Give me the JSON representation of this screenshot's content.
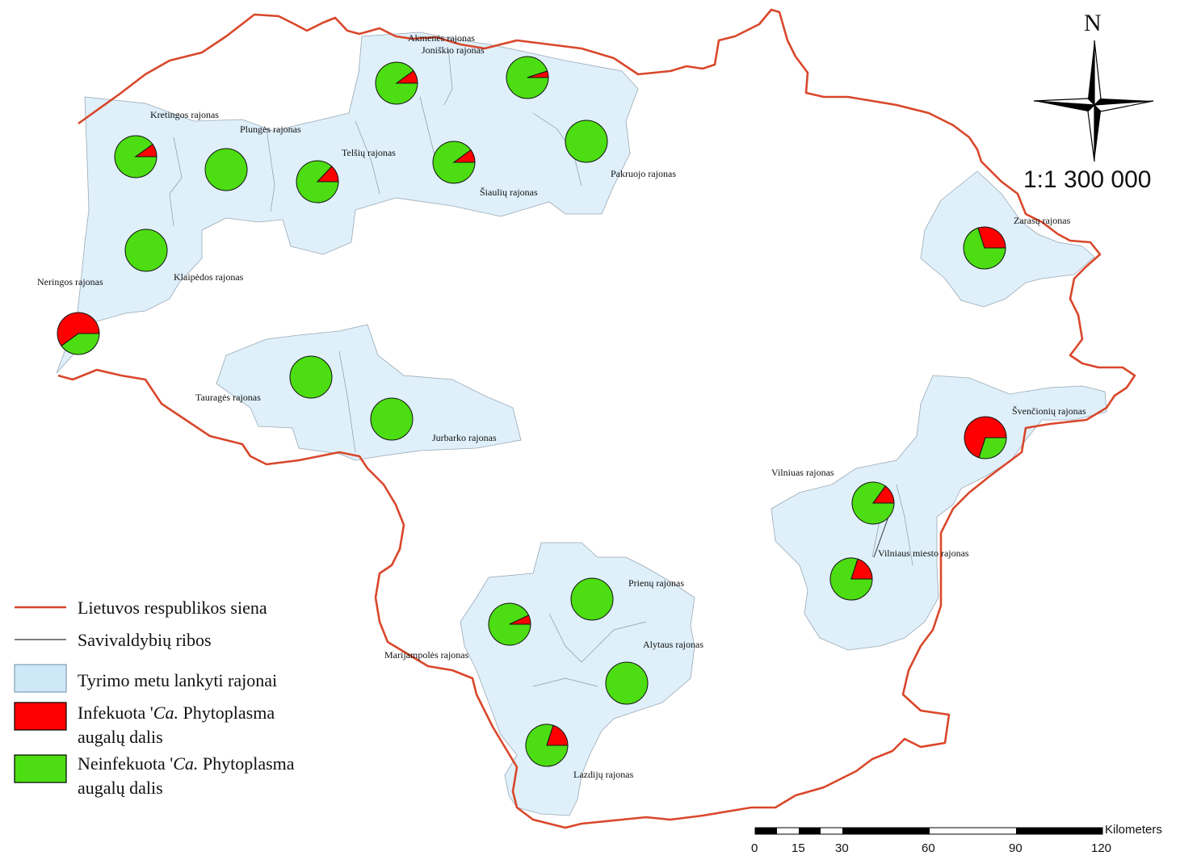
{
  "map": {
    "scale_ratio": "1:1 300 000",
    "north_label": "N",
    "colors": {
      "border": "#d9472b",
      "district_fill": "#dff0fb",
      "district_outline": "#333333",
      "infected": "#ff0000",
      "uninfected": "#4cdd12"
    },
    "legend": {
      "items": [
        {
          "symbol": "red-line",
          "label": "Lietuvos respublikos siena"
        },
        {
          "symbol": "black-line",
          "label": "Savivaldybių ribos"
        },
        {
          "symbol": "light-blue-box",
          "label": "Tyrimo metu lankyti rajonai"
        },
        {
          "symbol": "red-box",
          "label_prefix": "Infekuota '",
          "label_italic": "Ca.",
          "label_suffix": " Phytoplasma",
          "label_line2": "augalų dalis"
        },
        {
          "symbol": "green-box",
          "label_prefix": "Neinfekuota '",
          "label_italic": "Ca.",
          "label_suffix": " Phytoplasma",
          "label_line2": "augalų dalis"
        }
      ]
    },
    "scalebar": {
      "unit": "Kilometers",
      "ticks": [
        "0",
        "15",
        "30",
        "60",
        "90",
        "120"
      ]
    },
    "districts": [
      {
        "name": "Akmenės rajonas",
        "infected_share": 0.1
      },
      {
        "name": "Joniškio rajonas",
        "infected_share": 0.05
      },
      {
        "name": "Kretingos rajonas",
        "infected_share": 0.1
      },
      {
        "name": "Plungės rajonas",
        "infected_share": 0.0
      },
      {
        "name": "Telšių rajonas",
        "infected_share": 0.13
      },
      {
        "name": "Šiaulių rajonas",
        "infected_share": 0.1
      },
      {
        "name": "Pakruojo rajonas",
        "infected_share": 0.0
      },
      {
        "name": "Klaipėdos rajonas",
        "infected_share": 0.0
      },
      {
        "name": "Neringos rajonas",
        "infected_share": 0.6
      },
      {
        "name": "Tauragės rajonas",
        "infected_share": 0.0
      },
      {
        "name": "Jurbarko rajonas",
        "infected_share": 0.0
      },
      {
        "name": "Zarasų rajonas",
        "infected_share": 0.3
      },
      {
        "name": "Švenčionių rajonas",
        "infected_share": 0.7
      },
      {
        "name": "Vilniuas rajonas",
        "infected_share": 0.15
      },
      {
        "name": "Vilniaus miesto rajonas",
        "infected_share": 0.2
      },
      {
        "name": "Prienų rajonas",
        "infected_share": 0.0
      },
      {
        "name": "Marijampolės rajonas",
        "infected_share": 0.07
      },
      {
        "name": "Alytaus rajonas",
        "infected_share": 0.0
      },
      {
        "name": "Lazdijų rajonas",
        "infected_share": 0.2
      }
    ]
  }
}
